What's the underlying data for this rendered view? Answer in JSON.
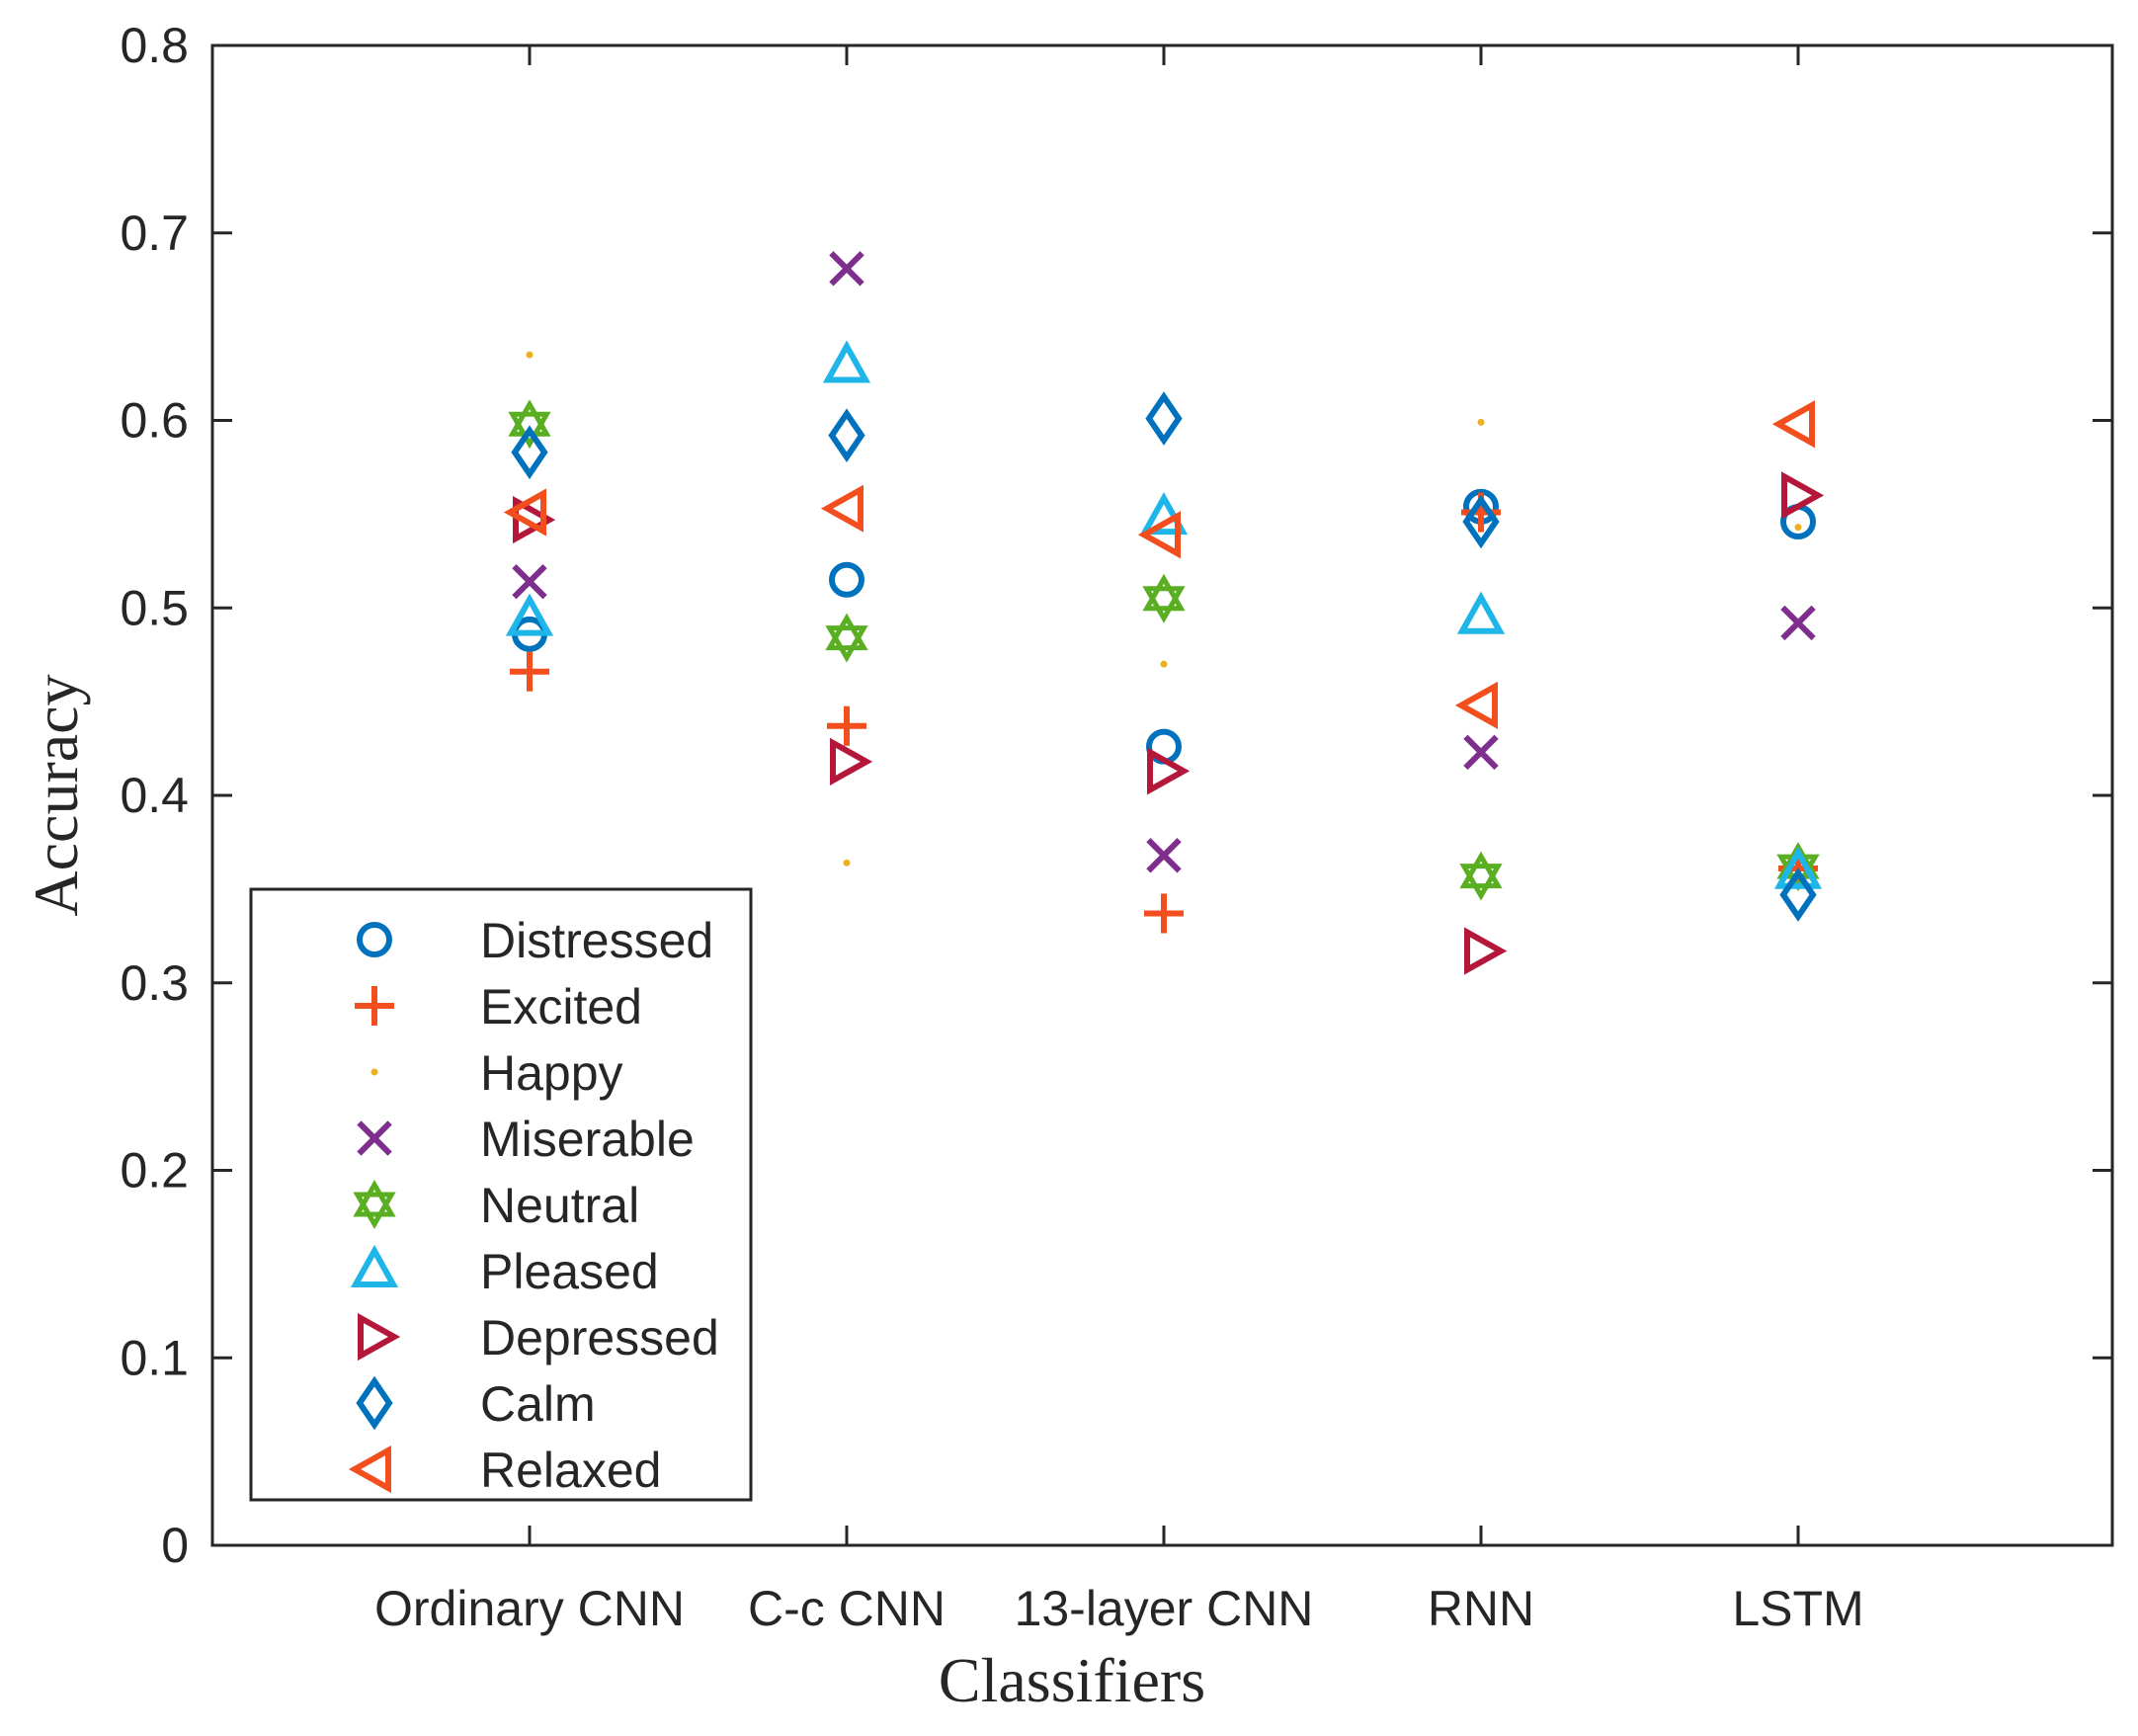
{
  "chart_data": {
    "type": "scatter",
    "title": "",
    "xlabel": "Classifiers",
    "ylabel": "Accuracy",
    "categories": [
      "Ordinary CNN",
      "C-c CNN",
      "13-layer CNN",
      "RNN",
      "LSTM"
    ],
    "ylim": [
      0,
      0.8
    ],
    "yticks": [
      "0",
      "0.1",
      "0.2",
      "0.3",
      "0.4",
      "0.5",
      "0.6",
      "0.7",
      "0.8"
    ],
    "grid": false,
    "legend_position": "bottom-left",
    "series": [
      {
        "name": "Distressed",
        "marker": "circle",
        "color": "#0072BD",
        "values": [
          0.486,
          0.515,
          0.426,
          0.554,
          0.546
        ]
      },
      {
        "name": "Excited",
        "marker": "plus",
        "color": "#F24E1E",
        "values": [
          0.466,
          0.437,
          0.337,
          0.551,
          0.361
        ]
      },
      {
        "name": "Happy",
        "marker": "point",
        "color": "#EDB120",
        "values": [
          0.635,
          0.364,
          0.47,
          0.599,
          0.543
        ]
      },
      {
        "name": "Miserable",
        "marker": "x",
        "color": "#7E2F8E",
        "values": [
          0.514,
          0.681,
          0.368,
          0.423,
          0.492
        ]
      },
      {
        "name": "Neutral",
        "marker": "hexagram",
        "color": "#5AAE22",
        "values": [
          0.598,
          0.484,
          0.505,
          0.357,
          0.362
        ]
      },
      {
        "name": "Pleased",
        "marker": "triangle-up",
        "color": "#1EB6E8",
        "values": [
          0.494,
          0.629,
          0.548,
          0.495,
          0.359
        ]
      },
      {
        "name": "Depressed",
        "marker": "triangle-right",
        "color": "#B5173A",
        "values": [
          0.547,
          0.418,
          0.413,
          0.317,
          0.56
        ]
      },
      {
        "name": "Calm",
        "marker": "diamond",
        "color": "#0072BD",
        "values": [
          0.583,
          0.592,
          0.601,
          0.546,
          0.347
        ]
      },
      {
        "name": "Relaxed",
        "marker": "triangle-left",
        "color": "#F24E1E",
        "values": [
          0.551,
          0.553,
          0.539,
          0.448,
          0.598
        ]
      }
    ]
  }
}
